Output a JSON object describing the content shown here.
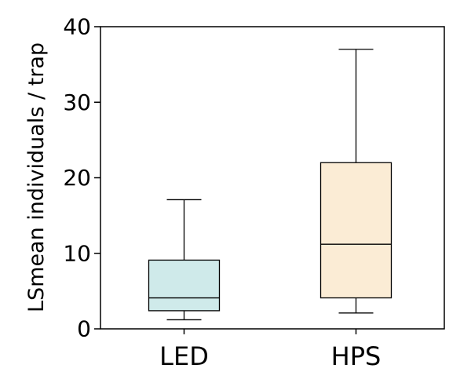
{
  "chart_data": {
    "type": "box",
    "title": "",
    "xlabel": "",
    "ylabel": "LSmean individuals / trap",
    "ylim": [
      0,
      40
    ],
    "yticks": [
      0,
      10,
      20,
      30,
      40
    ],
    "grid": false,
    "categories": [
      "LED",
      "HPS"
    ],
    "boxes": [
      {
        "label": "LED",
        "min": 1.2,
        "q1": 2.4,
        "median": 4.1,
        "q3": 9.1,
        "max": 17.1,
        "fill": "#cfeaea"
      },
      {
        "label": "HPS",
        "min": 2.1,
        "q1": 4.1,
        "median": 11.2,
        "q3": 22.0,
        "max": 37.0,
        "fill": "#fbecd5"
      }
    ]
  }
}
